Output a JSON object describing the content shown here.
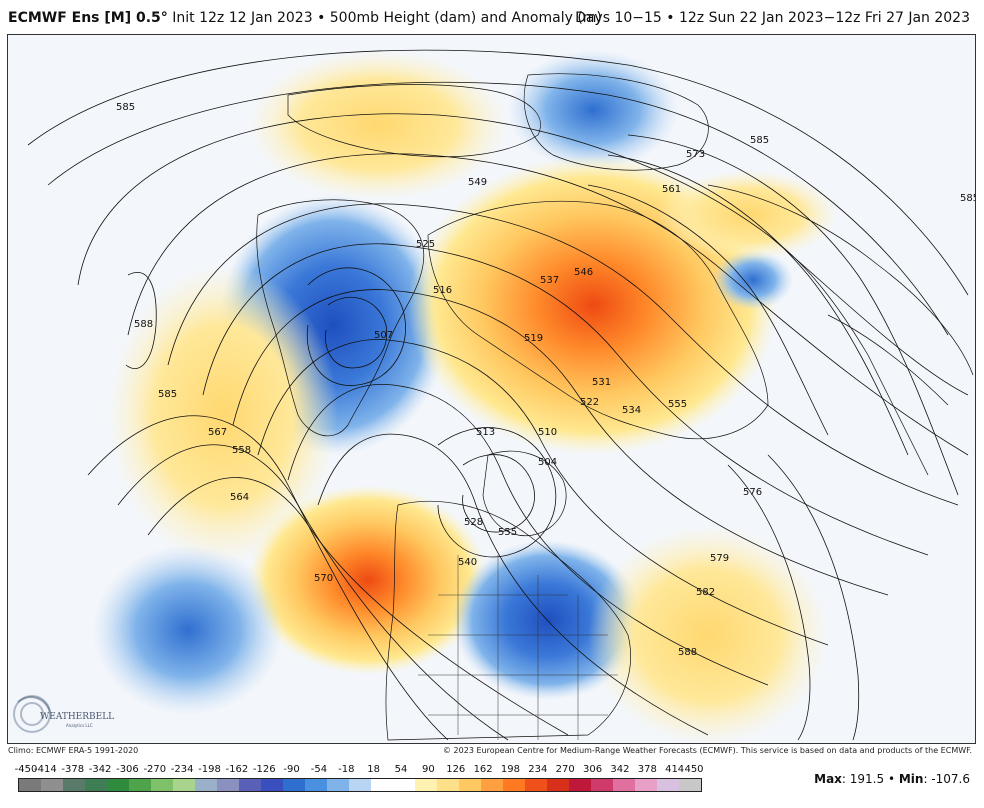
{
  "header": {
    "model": "ECMWF Ens [M] 0.5°",
    "init": " Init 12z 12 Jan 2023 • 500mb Height (dam) and Anomaly (m)",
    "valid": "Days 10−15 • 12z Sun 22 Jan 2023−12z Fri 27 Jan 2023"
  },
  "map": {
    "contour_labels": [
      "585",
      "588",
      "585",
      "567",
      "558",
      "564",
      "570",
      "546",
      "537",
      "519",
      "531",
      "522",
      "534",
      "555",
      "573",
      "561",
      "585",
      "549",
      "525",
      "516",
      "507",
      "513",
      "510",
      "504",
      "528",
      "540",
      "576",
      "579",
      "582",
      "588",
      "555",
      "585"
    ],
    "anomaly_centers": [
      {
        "region": "Greenland-Baffin trough",
        "sign": "negative"
      },
      {
        "region": "Europe ridge",
        "sign": "positive"
      },
      {
        "region": "Siberia low",
        "sign": "negative"
      },
      {
        "region": "Western North America ridge",
        "sign": "positive"
      },
      {
        "region": "Eastern North America trough",
        "sign": "negative"
      },
      {
        "region": "North Pacific low",
        "sign": "negative"
      },
      {
        "region": "Atlantic subtropical ridge",
        "sign": "positive"
      }
    ]
  },
  "logo": {
    "text": "WEATHERBELL",
    "sub": "Analytics LLC"
  },
  "credits": {
    "climo": "Climo: ECMWF ERA-5 1991-2020",
    "copyright": "© 2023 European Centre for Medium-Range Weather Forecasts (ECMWF). This service is based on data and products of the ECMWF."
  },
  "colorbar": {
    "ticks": [
      "-450",
      "-414",
      "-378",
      "-342",
      "-306",
      "-270",
      "-234",
      "-198",
      "-162",
      "-126",
      "-90",
      "-54",
      "-18",
      "18",
      "54",
      "90",
      "126",
      "162",
      "198",
      "234",
      "270",
      "306",
      "342",
      "378",
      "414",
      "450"
    ],
    "colors": [
      "#7a7a7a",
      "#8f8f8f",
      "#5a7a6a",
      "#3f7d55",
      "#2f8c3e",
      "#4fa34a",
      "#7fc06a",
      "#a9d48e",
      "#9ab0c8",
      "#8a90c0",
      "#5a5fb8",
      "#3a4fbf",
      "#2f6fd0",
      "#4a90e0",
      "#7fb3ea",
      "#b8d6f3",
      "#ffffff",
      "#ffffff",
      "#fff2b0",
      "#ffe08a",
      "#ffc860",
      "#ffa040",
      "#ff7a20",
      "#f0501a",
      "#d8301a",
      "#c0183a",
      "#d03a6a",
      "#e070a0",
      "#e8a0c8",
      "#d8c0e0",
      "#c8c8c8"
    ],
    "accent": "#ff7a20"
  },
  "stats": {
    "max_label": "Max",
    "max_value": ": 191.5 • ",
    "min_label": "Min",
    "min_value": ": -107.6"
  }
}
